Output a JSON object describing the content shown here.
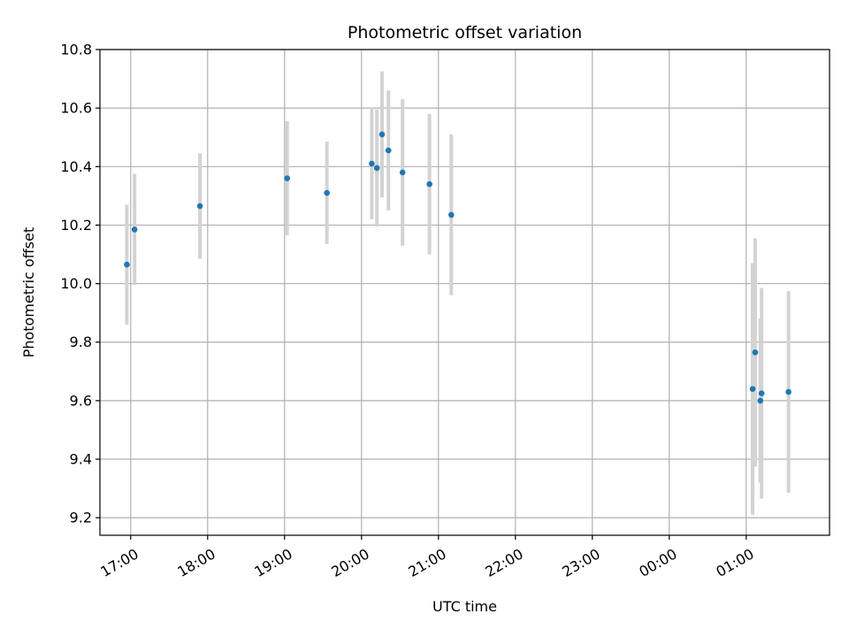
{
  "chart_data": {
    "type": "scatter",
    "title": "Photometric offset variation",
    "xlabel": "UTC time",
    "ylabel": "Photometric offset",
    "xlim": [
      "16:36",
      "02:05"
    ],
    "ylim": [
      9.14,
      10.8
    ],
    "grid": true,
    "x_ticks": [
      "17:00",
      "18:00",
      "19:00",
      "20:00",
      "21:00",
      "22:00",
      "23:00",
      "00:00",
      "01:00"
    ],
    "y_ticks": [
      9.2,
      9.4,
      9.6,
      9.8,
      10.0,
      10.2,
      10.4,
      10.6,
      10.8
    ],
    "marker_color": "#1f77b4",
    "errorbar_color": "#d3d3d3",
    "points": [
      {
        "time": "16:57",
        "value": 10.065,
        "err": 0.205
      },
      {
        "time": "17:03",
        "value": 10.185,
        "err": 0.19
      },
      {
        "time": "17:54",
        "value": 10.265,
        "err": 0.18
      },
      {
        "time": "19:02",
        "value": 10.36,
        "err": 0.195
      },
      {
        "time": "19:33",
        "value": 10.31,
        "err": 0.175
      },
      {
        "time": "20:08",
        "value": 10.41,
        "err": 0.19
      },
      {
        "time": "20:12",
        "value": 10.395,
        "err": 0.2
      },
      {
        "time": "20:16",
        "value": 10.51,
        "err": 0.215
      },
      {
        "time": "20:21",
        "value": 10.455,
        "err": 0.205
      },
      {
        "time": "20:32",
        "value": 10.38,
        "err": 0.25
      },
      {
        "time": "20:53",
        "value": 10.34,
        "err": 0.24
      },
      {
        "time": "21:10",
        "value": 10.235,
        "err": 0.275
      },
      {
        "time": "01:05",
        "value": 9.64,
        "err": 0.43
      },
      {
        "time": "01:07",
        "value": 9.765,
        "err": 0.39
      },
      {
        "time": "01:11",
        "value": 9.6,
        "err": 0.28
      },
      {
        "time": "01:12",
        "value": 9.625,
        "err": 0.36
      },
      {
        "time": "01:33",
        "value": 9.63,
        "err": 0.345
      }
    ]
  }
}
